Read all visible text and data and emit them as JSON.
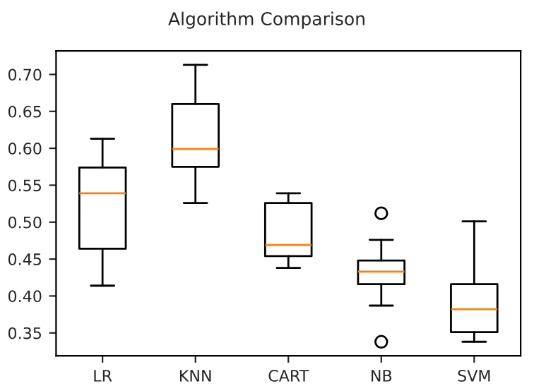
{
  "chart_data": {
    "type": "box",
    "title": "Algorithm Comparison",
    "categories": [
      "LR",
      "KNN",
      "CART",
      "NB",
      "SVM"
    ],
    "boxes": [
      {
        "low": 0.414,
        "q1": 0.464,
        "median": 0.539,
        "q3": 0.574,
        "high": 0.613
      },
      {
        "low": 0.526,
        "q1": 0.575,
        "median": 0.599,
        "q3": 0.66,
        "high": 0.713
      },
      {
        "low": 0.438,
        "q1": 0.454,
        "median": 0.469,
        "q3": 0.526,
        "high": 0.539
      },
      {
        "low": 0.387,
        "q1": 0.416,
        "median": 0.433,
        "q3": 0.448,
        "high": 0.476,
        "outliers": [
          0.512,
          0.338
        ]
      },
      {
        "low": 0.338,
        "q1": 0.351,
        "median": 0.382,
        "q3": 0.416,
        "high": 0.501
      }
    ],
    "ylim": [
      0.319,
      0.732
    ],
    "yticks": [
      0.35,
      {
        "value": 0.4,
        "label": "0.40"
      },
      0.45,
      {
        "value": 0.5,
        "label": "0.50"
      },
      0.55,
      {
        "value": 0.6,
        "label": "0.60"
      },
      0.65,
      {
        "value": 0.7,
        "label": "0.70"
      }
    ],
    "grid": false
  }
}
